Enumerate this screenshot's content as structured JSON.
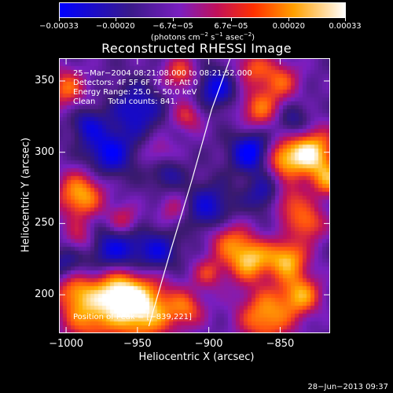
{
  "chart_data": {
    "type": "heatmap",
    "title": "Reconstructed RHESSI Image",
    "xlabel": "Heliocentric X (arcsec)",
    "ylabel": "Heliocentric Y (arcsec)",
    "xlim": [
      -1005,
      -815
    ],
    "ylim": [
      173,
      366
    ],
    "x_ticks": [
      -1000,
      -950,
      -900,
      -850
    ],
    "x_tick_labels": [
      "−1000",
      "−950",
      "−900",
      "−850"
    ],
    "y_ticks": [
      200,
      250,
      300,
      350
    ],
    "y_tick_labels": [
      "200",
      "250",
      "300",
      "350"
    ],
    "colorbar": {
      "min": -0.00033,
      "max": 0.00033,
      "ticks": [
        -0.00033,
        -0.0002,
        -6.7e-05,
        6.7e-05,
        0.0002,
        0.00033
      ],
      "tick_labels": [
        "−0.00033",
        "−0.00020",
        "−6.7e−05",
        "6.7e−05",
        "0.00020",
        "0.00033"
      ],
      "units_prefix": "(photons cm",
      "units_exp1": "−2",
      "units_mid": " s",
      "units_exp2": "−1",
      "units_mid2": " asec",
      "units_exp3": "−2",
      "units_suffix": ")"
    },
    "annotations": [
      "25−Mar−2004 08:21:08.000 to 08:21:52.000",
      "Detectors: 4F 5F 6F 7F 8F, Att 0",
      "Energy Range: 25.0 − 50.0 keV",
      "Clean     Total counts: 841."
    ],
    "position_label": "Position of Peak = [−839,221]",
    "grid": false,
    "colormap": [
      "#0000ff",
      "#3a1a6e",
      "#7a1ec0",
      "#c0105a",
      "#ff5010",
      "#ffb000",
      "#ffffff"
    ],
    "limb_curve": [
      [
        -942,
        178
      ],
      [
        -927,
        230
      ],
      [
        -912,
        280
      ],
      [
        -898,
        330
      ],
      [
        -885,
        366
      ]
    ],
    "blobs": [
      {
        "x": -947,
        "y": 190,
        "v": 1.0,
        "s": 16
      },
      {
        "x": -985,
        "y": 185,
        "v": 0.65,
        "s": 14
      },
      {
        "x": -965,
        "y": 205,
        "v": 0.75,
        "s": 12
      },
      {
        "x": -995,
        "y": 205,
        "v": 0.55,
        "s": 10
      },
      {
        "x": -872,
        "y": 225,
        "v": 0.85,
        "s": 11
      },
      {
        "x": -888,
        "y": 240,
        "v": 0.5,
        "s": 10
      },
      {
        "x": -860,
        "y": 185,
        "v": 0.75,
        "s": 14
      },
      {
        "x": -835,
        "y": 200,
        "v": 0.7,
        "s": 10
      },
      {
        "x": -845,
        "y": 225,
        "v": 0.8,
        "s": 10
      },
      {
        "x": -830,
        "y": 250,
        "v": 0.6,
        "s": 9
      },
      {
        "x": -845,
        "y": 265,
        "v": 0.55,
        "s": 9
      },
      {
        "x": -830,
        "y": 300,
        "v": 1.0,
        "s": 13
      },
      {
        "x": -815,
        "y": 280,
        "v": 0.6,
        "s": 9
      },
      {
        "x": -850,
        "y": 295,
        "v": 0.55,
        "s": 9
      },
      {
        "x": -865,
        "y": 330,
        "v": 0.6,
        "s": 10
      },
      {
        "x": -850,
        "y": 350,
        "v": 0.55,
        "s": 10
      },
      {
        "x": -870,
        "y": 360,
        "v": 0.5,
        "s": 9
      },
      {
        "x": -990,
        "y": 270,
        "v": 0.8,
        "s": 12
      },
      {
        "x": -1000,
        "y": 345,
        "v": 0.6,
        "s": 10
      },
      {
        "x": -920,
        "y": 355,
        "v": 0.55,
        "s": 9
      },
      {
        "x": -915,
        "y": 325,
        "v": 0.45,
        "s": 8
      },
      {
        "x": -960,
        "y": 252,
        "v": 0.5,
        "s": 8
      },
      {
        "x": -925,
        "y": 260,
        "v": 0.35,
        "s": 8
      },
      {
        "x": -900,
        "y": 215,
        "v": 0.45,
        "s": 8
      },
      {
        "x": -915,
        "y": 190,
        "v": 0.5,
        "s": 9
      },
      {
        "x": -990,
        "y": 240,
        "v": 0.4,
        "s": 8
      },
      {
        "x": -935,
        "y": 300,
        "v": 0.3,
        "s": 8
      },
      {
        "x": -965,
        "y": 230,
        "v": -0.6,
        "s": 14
      },
      {
        "x": -950,
        "y": 330,
        "v": -0.5,
        "s": 12
      },
      {
        "x": -970,
        "y": 300,
        "v": -0.6,
        "s": 12
      },
      {
        "x": -935,
        "y": 230,
        "v": -0.45,
        "s": 10
      },
      {
        "x": -900,
        "y": 260,
        "v": -0.5,
        "s": 12
      },
      {
        "x": -870,
        "y": 300,
        "v": -0.7,
        "s": 10
      },
      {
        "x": -860,
        "y": 270,
        "v": -0.45,
        "s": 9
      },
      {
        "x": -840,
        "y": 320,
        "v": -0.45,
        "s": 9
      },
      {
        "x": -895,
        "y": 345,
        "v": -0.55,
        "s": 10
      },
      {
        "x": -1000,
        "y": 220,
        "v": -0.4,
        "s": 9
      },
      {
        "x": -930,
        "y": 285,
        "v": -0.35,
        "s": 8
      },
      {
        "x": -985,
        "y": 320,
        "v": -0.4,
        "s": 8
      }
    ]
  },
  "footer": {
    "date": "28−Jun−2013 09:37"
  }
}
